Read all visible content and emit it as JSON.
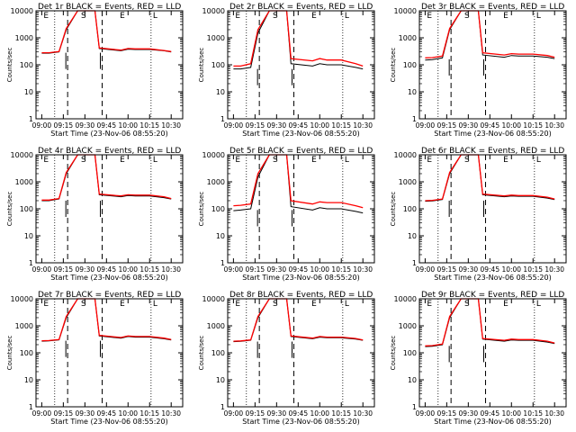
{
  "colors": {
    "events": "#000000",
    "lld": "#ff0000",
    "background": "#ffffff"
  },
  "xtick_labels": [
    "09:00",
    "09:15",
    "09:30",
    "09:45",
    "10:00",
    "10:15",
    "10:30"
  ],
  "ytick_labels": [
    "1",
    "10",
    "100",
    "1000",
    "10000"
  ],
  "ylabel": "Counts/sec",
  "xlabel": "Start Time (23-Nov-06 08:55:20)",
  "chart_data": [
    {
      "type": "line",
      "title": "Det 1r BLACK = Events, RED = LLD",
      "flags": [
        "E",
        "S",
        "E",
        "L"
      ],
      "pre_level": 280,
      "x": [
        "09:00",
        "09:05",
        "09:12",
        "09:17",
        "09:25",
        "09:30",
        "09:37",
        "09:40",
        "09:55",
        "10:00",
        "10:05",
        "10:15",
        "10:25",
        "10:30"
      ],
      "series": [
        {
          "name": "Events",
          "values": [
            270,
            270,
            300,
            2000,
            10000,
            10000,
            10000,
            400,
            330,
            380,
            370,
            370,
            330,
            300
          ]
        },
        {
          "name": "LLD",
          "values": [
            280,
            280,
            310,
            2200,
            10000,
            10000,
            10000,
            420,
            350,
            400,
            390,
            390,
            340,
            310
          ]
        }
      ]
    },
    {
      "type": "line",
      "title": "Det 2r BLACK = Events, RED = LLD",
      "flags": [
        "E",
        "S",
        "E",
        "L"
      ],
      "pre_level": 70,
      "x": [
        "09:00",
        "09:05",
        "09:12",
        "09:17",
        "09:25",
        "09:30",
        "09:37",
        "09:40",
        "09:55",
        "10:00",
        "10:05",
        "10:15",
        "10:25",
        "10:30"
      ],
      "series": [
        {
          "name": "Events",
          "values": [
            70,
            70,
            80,
            1500,
            10000,
            10000,
            10000,
            110,
            90,
            110,
            100,
            100,
            80,
            70
          ]
        },
        {
          "name": "LLD",
          "values": [
            90,
            90,
            110,
            2000,
            10000,
            10000,
            10000,
            170,
            140,
            170,
            150,
            150,
            110,
            90
          ]
        }
      ]
    },
    {
      "type": "line",
      "title": "Det 3r BLACK = Events, RED = LLD",
      "flags": [
        "E",
        "S",
        "E",
        "L"
      ],
      "pre_level": 160,
      "x": [
        "09:00",
        "09:05",
        "09:12",
        "09:17",
        "09:25",
        "09:30",
        "09:37",
        "09:40",
        "09:55",
        "10:00",
        "10:05",
        "10:15",
        "10:25",
        "10:30"
      ],
      "series": [
        {
          "name": "Events",
          "values": [
            150,
            155,
            180,
            2000,
            10000,
            10000,
            10000,
            230,
            190,
            220,
            210,
            210,
            190,
            170
          ]
        },
        {
          "name": "LLD",
          "values": [
            180,
            185,
            210,
            2200,
            10000,
            10000,
            10000,
            280,
            230,
            260,
            250,
            250,
            220,
            190
          ]
        }
      ]
    },
    {
      "type": "line",
      "title": "Det 4r BLACK = Events, RED = LLD",
      "flags": [
        "E",
        "S",
        "E",
        "L"
      ],
      "pre_level": 200,
      "x": [
        "09:00",
        "09:05",
        "09:12",
        "09:17",
        "09:25",
        "09:30",
        "09:37",
        "09:40",
        "09:55",
        "10:00",
        "10:05",
        "10:15",
        "10:25",
        "10:30"
      ],
      "series": [
        {
          "name": "Events",
          "values": [
            200,
            200,
            230,
            2000,
            10000,
            10000,
            10000,
            330,
            280,
            310,
            300,
            300,
            260,
            230
          ]
        },
        {
          "name": "LLD",
          "values": [
            210,
            210,
            240,
            2200,
            10000,
            10000,
            10000,
            350,
            300,
            330,
            320,
            320,
            280,
            240
          ]
        }
      ]
    },
    {
      "type": "line",
      "title": "Det 5r BLACK = Events, RED = LLD",
      "flags": [
        "E",
        "S",
        "E",
        "L"
      ],
      "pre_level": 90,
      "x": [
        "09:00",
        "09:05",
        "09:12",
        "09:17",
        "09:25",
        "09:30",
        "09:37",
        "09:40",
        "09:55",
        "10:00",
        "10:05",
        "10:15",
        "10:25",
        "10:30"
      ],
      "series": [
        {
          "name": "Events",
          "values": [
            85,
            90,
            100,
            1500,
            10000,
            10000,
            10000,
            120,
            90,
            110,
            100,
            100,
            80,
            70
          ]
        },
        {
          "name": "LLD",
          "values": [
            130,
            135,
            150,
            2000,
            10000,
            10000,
            10000,
            200,
            150,
            180,
            170,
            170,
            130,
            110
          ]
        }
      ]
    },
    {
      "type": "line",
      "title": "Det 6r BLACK = Events, RED = LLD",
      "flags": [
        "E",
        "S",
        "E",
        "L"
      ],
      "pre_level": 200,
      "x": [
        "09:00",
        "09:05",
        "09:12",
        "09:17",
        "09:25",
        "09:30",
        "09:37",
        "09:40",
        "09:55",
        "10:00",
        "10:05",
        "10:15",
        "10:25",
        "10:30"
      ],
      "series": [
        {
          "name": "Events",
          "values": [
            190,
            195,
            220,
            2000,
            10000,
            10000,
            10000,
            330,
            280,
            300,
            290,
            290,
            250,
            220
          ]
        },
        {
          "name": "LLD",
          "values": [
            200,
            205,
            230,
            2200,
            10000,
            10000,
            10000,
            350,
            300,
            320,
            310,
            310,
            270,
            230
          ]
        }
      ]
    },
    {
      "type": "line",
      "title": "Det 7r BLACK = Events, RED = LLD",
      "flags": [
        "E",
        "S",
        "E",
        "L"
      ],
      "pre_level": 280,
      "x": [
        "09:00",
        "09:05",
        "09:12",
        "09:17",
        "09:25",
        "09:30",
        "09:37",
        "09:40",
        "09:55",
        "10:00",
        "10:05",
        "10:15",
        "10:25",
        "10:30"
      ],
      "series": [
        {
          "name": "Events",
          "values": [
            270,
            275,
            300,
            2000,
            10000,
            10000,
            10000,
            420,
            350,
            400,
            380,
            380,
            330,
            300
          ]
        },
        {
          "name": "LLD",
          "values": [
            280,
            285,
            310,
            2200,
            10000,
            10000,
            10000,
            440,
            370,
            420,
            400,
            400,
            350,
            310
          ]
        }
      ]
    },
    {
      "type": "line",
      "title": "Det 8r BLACK = Events, RED = LLD",
      "flags": [
        "E",
        "S",
        "E",
        "L"
      ],
      "pre_level": 260,
      "x": [
        "09:00",
        "09:05",
        "09:12",
        "09:17",
        "09:25",
        "09:30",
        "09:37",
        "09:40",
        "09:55",
        "10:00",
        "10:05",
        "10:15",
        "10:25",
        "10:30"
      ],
      "series": [
        {
          "name": "Events",
          "values": [
            260,
            265,
            290,
            2000,
            10000,
            10000,
            10000,
            400,
            330,
            380,
            360,
            360,
            320,
            290
          ]
        },
        {
          "name": "LLD",
          "values": [
            270,
            275,
            300,
            2200,
            10000,
            10000,
            10000,
            420,
            350,
            400,
            380,
            380,
            340,
            300
          ]
        }
      ]
    },
    {
      "type": "line",
      "title": "Det 9r BLACK = Events, RED = LLD",
      "flags": [
        "E",
        "S",
        "E",
        "L"
      ],
      "pre_level": 180,
      "x": [
        "09:00",
        "09:05",
        "09:12",
        "09:17",
        "09:25",
        "09:30",
        "09:37",
        "09:40",
        "09:55",
        "10:00",
        "10:05",
        "10:15",
        "10:25",
        "10:30"
      ],
      "series": [
        {
          "name": "Events",
          "values": [
            170,
            175,
            200,
            2000,
            10000,
            10000,
            10000,
            320,
            270,
            300,
            290,
            290,
            250,
            220
          ]
        },
        {
          "name": "LLD",
          "values": [
            180,
            185,
            210,
            2200,
            10000,
            10000,
            10000,
            340,
            290,
            320,
            310,
            310,
            270,
            230
          ]
        }
      ]
    }
  ]
}
